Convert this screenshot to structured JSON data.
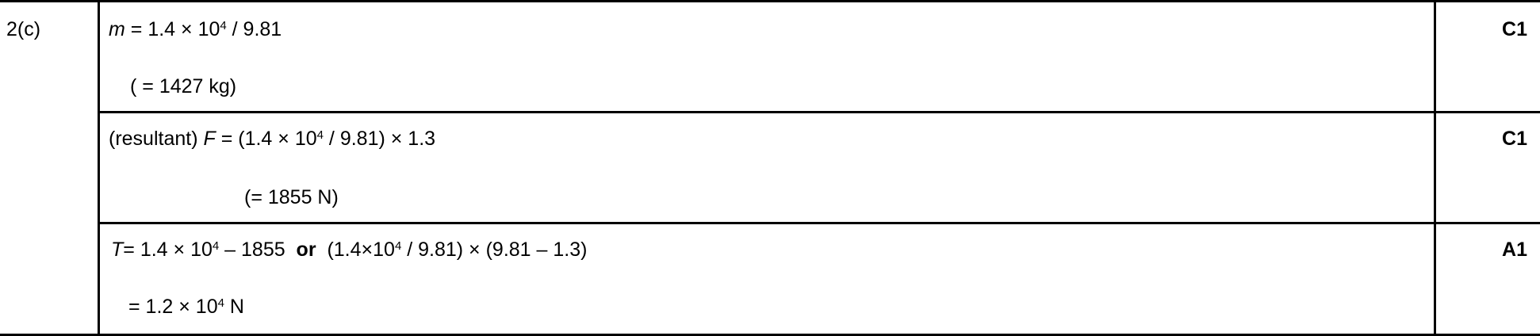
{
  "question": "2(c)",
  "rows": [
    {
      "line1": {
        "var": "m",
        "expr": " = 1.4 × 10",
        "sup": "4",
        "tail": " / 9.81"
      },
      "line2": "( = 1427 kg)",
      "mark": "C1"
    },
    {
      "line1": {
        "prefix": "(resultant) ",
        "var": "F",
        "expr": " = (1.4 × 10",
        "sup": "4",
        "tail": " / 9.81) × 1.3"
      },
      "line2": "(= 1855 N)",
      "mark": "C1"
    },
    {
      "line1": {
        "var": "T",
        "expr": "= 1.4 × 10",
        "sup": "4",
        "mid": " – 1855  ",
        "or": "or",
        "alt": "  (1.4×10",
        "sup2": "4",
        "tail": " / 9.81) × (9.81 – 1.3)"
      },
      "line2": {
        "expr": "= 1.2 × 10",
        "sup": "4",
        "tail": " N"
      },
      "mark": "A1"
    }
  ]
}
